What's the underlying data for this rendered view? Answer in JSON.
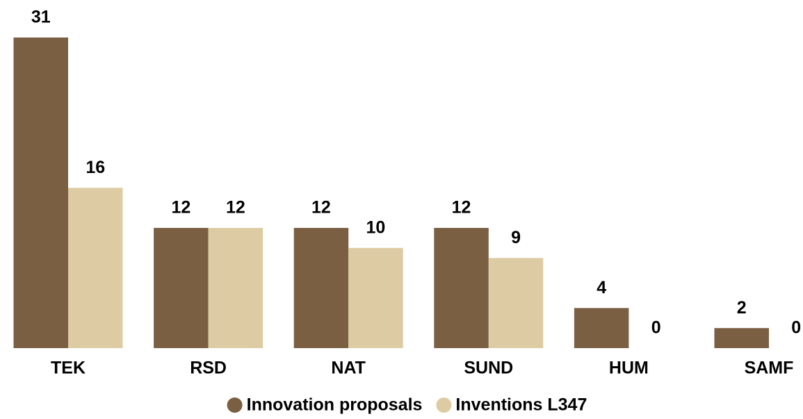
{
  "chart_data": {
    "type": "bar",
    "categories": [
      "TEK",
      "RSD",
      "NAT",
      "SUND",
      "HUM",
      "SAMF"
    ],
    "series": [
      {
        "name": "Innovation proposals",
        "color": "#7a5f43",
        "values": [
          31,
          12,
          12,
          12,
          4,
          2
        ]
      },
      {
        "name": "Inventions L347",
        "color": "#ddcca3",
        "values": [
          16,
          12,
          10,
          9,
          0,
          0
        ]
      }
    ],
    "ylim": [
      0,
      31
    ],
    "legend": "bottom"
  }
}
